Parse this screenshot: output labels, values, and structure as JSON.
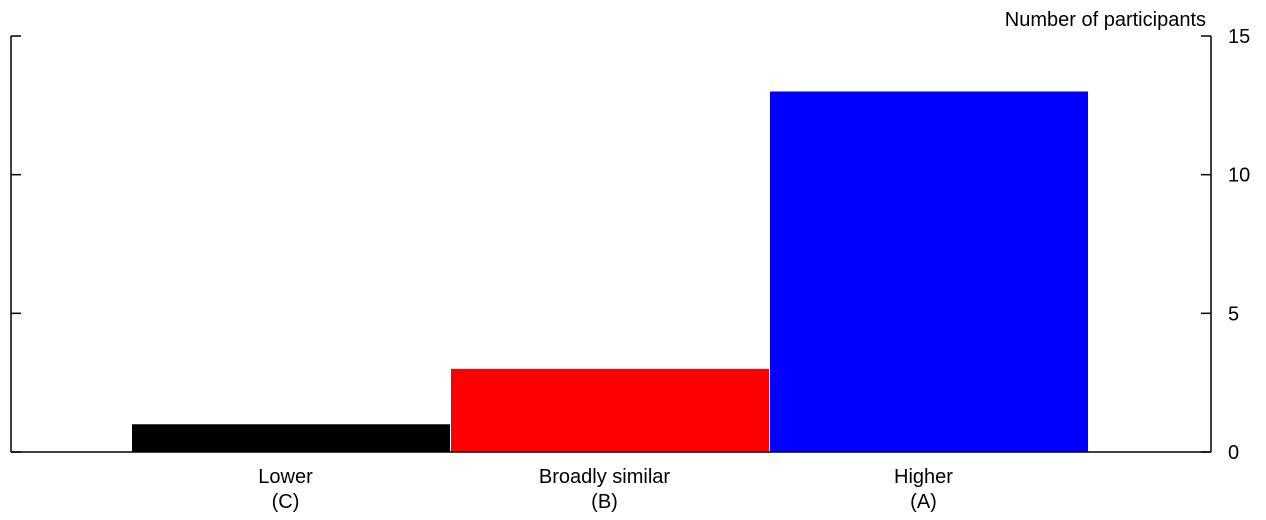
{
  "chart_data": {
    "type": "bar",
    "categories": [
      "Lower",
      "Broadly similar",
      "Higher"
    ],
    "category_sublabels": [
      "(C)",
      "(B)",
      "(A)"
    ],
    "values": [
      1,
      3,
      13
    ],
    "colors": [
      "#000000",
      "#ff0000",
      "#0000ff"
    ],
    "ylabel": "Number of participants",
    "ylim": [
      0,
      15
    ],
    "yticks": [
      "0",
      "5",
      "10",
      "15"
    ],
    "y_axis_side": "right",
    "grid": false,
    "legend": "none"
  }
}
